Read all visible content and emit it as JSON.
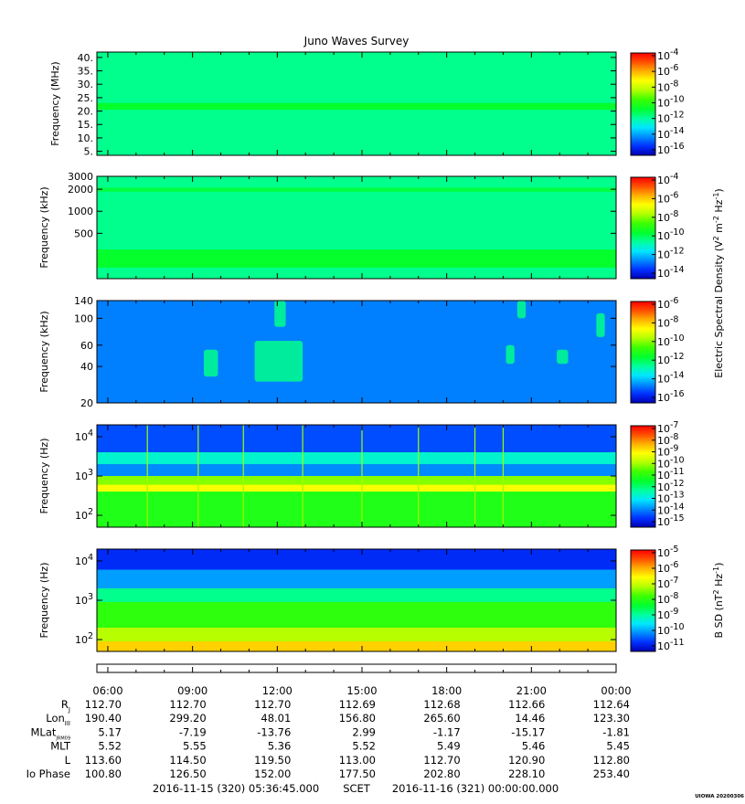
{
  "title": "Juno Waves Survey",
  "colors": {
    "background": "#0a8cf0",
    "low_band_fill": "#31e06a",
    "high_band": "#12f29a",
    "axis": "#000000",
    "text": "#000000"
  },
  "colormap": [
    "#0000b4",
    "#0030ff",
    "#008cff",
    "#00e6ff",
    "#00ffa0",
    "#00ff30",
    "#40ff00",
    "#b4ff00",
    "#ffff00",
    "#ffb000",
    "#ff5000",
    "#ff0000"
  ],
  "chart_data": [
    {
      "type": "heatmap",
      "panel": "1",
      "ylabel": "Frequency (MHz)",
      "yscale": "linear",
      "ylim": [
        3.5,
        42
      ],
      "yticks": [
        5,
        10,
        15,
        20,
        25,
        30,
        35,
        40
      ],
      "ytick_labels": [
        "5.",
        "10.",
        "15.",
        "20.",
        "25.",
        "30.",
        "35.",
        "40."
      ],
      "colorbar_ticks": [
        "10^-4",
        "10^-6",
        "10^-8",
        "10^-10",
        "10^-12",
        "10^-14",
        "10^-16"
      ],
      "colorbar_exponents": [
        -4,
        -6,
        -8,
        -10,
        -12,
        -14,
        -16
      ],
      "background_level": 0.38,
      "bands": [
        {
          "y0": 20.5,
          "y1": 23,
          "level": 0.46
        }
      ]
    },
    {
      "type": "heatmap",
      "panel": "2",
      "ylabel": "Frequency (kHz)",
      "yscale": "log",
      "ylim": [
        120,
        3000
      ],
      "yticks": [
        500,
        1000,
        2000,
        3000
      ],
      "ytick_labels": [
        "500",
        "1000",
        "2000",
        "3000"
      ],
      "colorbar_ticks": [
        "10^-4",
        "10^-6",
        "10^-8",
        "10^-10",
        "10^-12",
        "10^-14"
      ],
      "colorbar_exponents": [
        -4,
        -6,
        -8,
        -10,
        -12,
        -14
      ],
      "background_level": 0.38,
      "bands": [
        {
          "y0": 1850,
          "y1": 2100,
          "level": 0.44
        },
        {
          "y0": 170,
          "y1": 300,
          "level": 0.46
        }
      ]
    },
    {
      "type": "heatmap",
      "panel": "3",
      "ylabel": "Frequency (kHz)",
      "yscale": "log",
      "ylim": [
        20,
        140
      ],
      "yticks": [
        20,
        40,
        60,
        100,
        140
      ],
      "ytick_labels": [
        "20",
        "40",
        "60",
        "100",
        "140"
      ],
      "colorbar_label": "Electric Spectral Density (V^2 m^-2 Hz^-1)",
      "colorbar_ticks": [
        "10^-6",
        "10^-8",
        "10^-10",
        "10^-12",
        "10^-14",
        "10^-16"
      ],
      "colorbar_exponents": [
        -6,
        -8,
        -10,
        -12,
        -14,
        -16
      ],
      "background_level": 0.17,
      "bursts": [
        {
          "x0": 9.4,
          "x1": 9.9,
          "y0": 33,
          "y1": 55
        },
        {
          "x0": 11.2,
          "x1": 12.9,
          "y0": 30,
          "y1": 65
        },
        {
          "x0": 11.9,
          "x1": 12.3,
          "y0": 85,
          "y1": 140
        },
        {
          "x0": 20.1,
          "x1": 20.4,
          "y0": 42,
          "y1": 60
        },
        {
          "x0": 20.5,
          "x1": 20.8,
          "y0": 100,
          "y1": 140
        },
        {
          "x0": 21.9,
          "x1": 22.3,
          "y0": 42,
          "y1": 55
        },
        {
          "x0": 23.3,
          "x1": 23.6,
          "y0": 70,
          "y1": 110
        }
      ]
    },
    {
      "type": "heatmap",
      "panel": "4",
      "ylabel": "Frequency (Hz)",
      "yscale": "log",
      "ylim": [
        50,
        20000
      ],
      "yticks": [
        100,
        1000,
        10000
      ],
      "ytick_labels": [
        "10^2",
        "10^3",
        "10^4"
      ],
      "colorbar_ticks": [
        "10^-7",
        "10^-8",
        "10^-9",
        "10^-10",
        "10^-11",
        "10^-12",
        "10^-13",
        "10^-14",
        "10^-15"
      ],
      "colorbar_exponents": [
        -7,
        -8,
        -9,
        -10,
        -11,
        -12,
        -13,
        -14,
        -15
      ],
      "bands": [
        {
          "y0": 4000,
          "y1": 20000,
          "level": 0.12
        },
        {
          "y0": 2000,
          "y1": 4000,
          "level": 0.32
        },
        {
          "y0": 1000,
          "y1": 2000,
          "level": 0.18
        },
        {
          "y0": 600,
          "y1": 1000,
          "level": 0.6
        },
        {
          "y0": 400,
          "y1": 600,
          "level": 0.72
        },
        {
          "y0": 50,
          "y1": 400,
          "level": 0.5
        }
      ],
      "spikes_x": [
        7.4,
        9.2,
        10.8,
        12.9,
        15.0,
        17.0,
        19.0,
        20.0
      ]
    },
    {
      "type": "heatmap",
      "panel": "5",
      "ylabel": "Frequency (Hz)",
      "yscale": "log",
      "ylim": [
        50,
        20000
      ],
      "yticks": [
        100,
        1000,
        10000
      ],
      "ytick_labels": [
        "10^2",
        "10^3",
        "10^4"
      ],
      "colorbar_label": "B SD (nT^2 Hz^-1)",
      "colorbar_ticks": [
        "10^-5",
        "10^-6",
        "10^-7",
        "10^-8",
        "10^-9",
        "10^-10",
        "10^-11"
      ],
      "colorbar_exponents": [
        -5,
        -6,
        -7,
        -8,
        -9,
        -10,
        -11
      ],
      "bands": [
        {
          "y0": 6000,
          "y1": 20000,
          "level": 0.08
        },
        {
          "y0": 2000,
          "y1": 6000,
          "level": 0.2
        },
        {
          "y0": 900,
          "y1": 2000,
          "level": 0.38
        },
        {
          "y0": 200,
          "y1": 900,
          "level": 0.52
        },
        {
          "y0": 90,
          "y1": 200,
          "level": 0.64
        },
        {
          "y0": 50,
          "y1": 90,
          "level": 0.78
        }
      ]
    }
  ],
  "time_axis": {
    "range_hours": [
      5.6125,
      24
    ],
    "tick_hours": [
      6,
      9,
      12,
      15,
      18,
      21,
      24
    ],
    "tick_labels": [
      "06:00",
      "09:00",
      "12:00",
      "15:00",
      "18:00",
      "21:00",
      "00:00"
    ]
  },
  "ephemeris": {
    "rows": [
      {
        "label": "R",
        "sub": "J",
        "values": [
          "112.70",
          "112.70",
          "112.70",
          "112.69",
          "112.68",
          "112.66",
          "112.64"
        ]
      },
      {
        "label": "Lon",
        "sub": "III",
        "values": [
          "190.40",
          "299.20",
          "48.01",
          "156.80",
          "265.60",
          "14.46",
          "123.30"
        ]
      },
      {
        "label": "MLat",
        "sub": "JRM09",
        "values": [
          "5.17",
          "-7.19",
          "-13.76",
          "2.99",
          "-1.17",
          "-15.17",
          "-1.81"
        ]
      },
      {
        "label": "MLT",
        "sub": "",
        "values": [
          "5.52",
          "5.55",
          "5.36",
          "5.52",
          "5.49",
          "5.46",
          "5.45"
        ]
      },
      {
        "label": "L",
        "sub": "",
        "values": [
          "113.60",
          "114.50",
          "119.50",
          "113.00",
          "112.70",
          "120.90",
          "112.80"
        ]
      },
      {
        "label": "Io Phase",
        "sub": "",
        "values": [
          "100.80",
          "126.50",
          "152.00",
          "177.50",
          "202.80",
          "228.10",
          "253.40"
        ]
      }
    ]
  },
  "footer": {
    "start": "2016-11-15 (320) 05:36:45.000",
    "mode": "SCET",
    "end": "2016-11-16 (321) 00:00:00.000",
    "stamp": "UIOWA 20200306"
  }
}
